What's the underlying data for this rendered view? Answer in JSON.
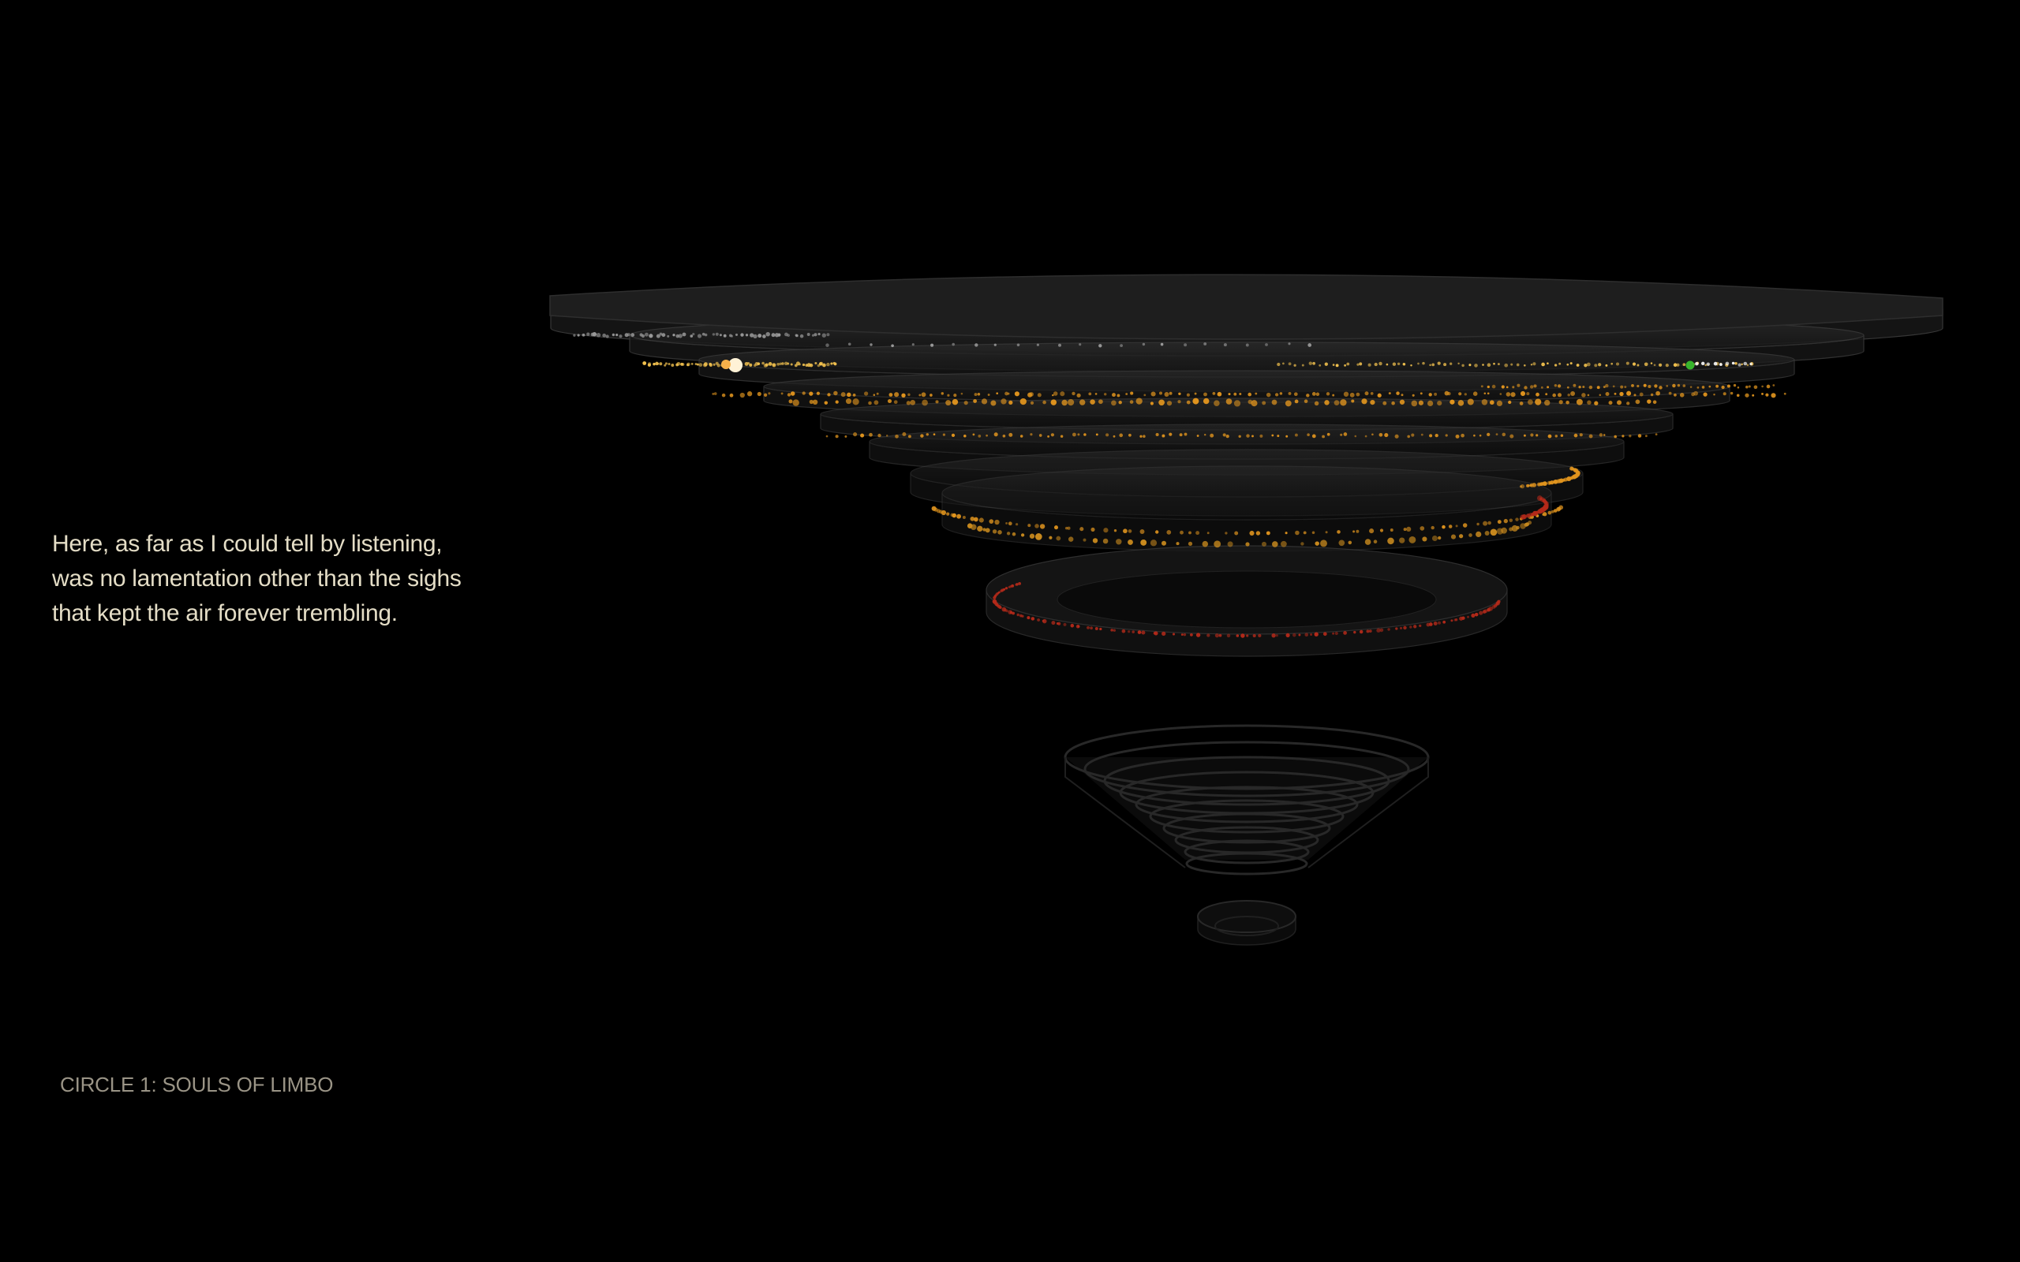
{
  "quote": {
    "lines": [
      "Here, as far as I could tell by listening,",
      "was no lamentation other than the sighs",
      "that kept the air forever trembling."
    ]
  },
  "circle_label": "CIRCLE 1: SOULS OF LIMBO",
  "colors": {
    "background": "#000000",
    "quote_text": "#e4ddc6",
    "label_text": "#9a9486",
    "ring_fill": "#1c1c1c",
    "ring_edge": "#3a3a3a",
    "soul_grey": "#9a9a9a",
    "soul_yellow": "#f2c14e",
    "soul_orange": "#e0941e",
    "soul_red": "#b52a1a",
    "soul_highlight": "#fff2d6",
    "soul_green": "#38b52c"
  },
  "icons": {
    "inferno": "inferno-funnel-icon"
  }
}
